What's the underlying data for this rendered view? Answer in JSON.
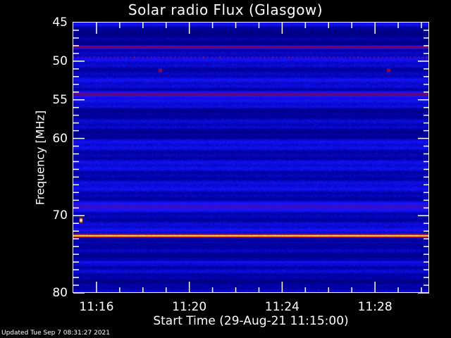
{
  "chart_data": {
    "type": "heatmap",
    "title": "Solar radio Flux (Glasgow)",
    "xlabel": "Start Time (29-Aug-21 11:15:00)",
    "ylabel": "Frequency [MHz]",
    "xlim": [
      "11:15:00",
      "11:30:20"
    ],
    "ylim": [
      80,
      45
    ],
    "x_ticks": [
      "11:16",
      "11:20",
      "11:24",
      "11:28"
    ],
    "y_ticks": [
      45,
      50,
      55,
      60,
      70,
      80
    ],
    "colormap": [
      "#000028",
      "#0000a0",
      "#1414ff",
      "#8c003c",
      "#c80000",
      "#f0dc00",
      "#ffffff"
    ],
    "features": [
      {
        "freq": 45.2,
        "width": 0.4,
        "level": 0.45,
        "kind": "band"
      },
      {
        "freq": 48.2,
        "width": 0.35,
        "level": 0.62,
        "kind": "band"
      },
      {
        "freq": 49.5,
        "width": 0.3,
        "level": 0.7,
        "kind": "periodic-spikes"
      },
      {
        "freq": 51.2,
        "width": 0.3,
        "level": 0.7,
        "kind": "spot",
        "times": [
          "11:18:45",
          "11:28:35"
        ]
      },
      {
        "freq": 54.3,
        "width": 0.6,
        "level": 0.58,
        "kind": "band"
      },
      {
        "freq": 68.8,
        "width": 0.8,
        "level": 0.5,
        "kind": "band"
      },
      {
        "freq": 70.6,
        "width": 0.4,
        "level": 1.0,
        "kind": "spot",
        "times": [
          "11:15:20"
        ]
      },
      {
        "freq": 72.6,
        "width": 0.35,
        "level": 0.95,
        "kind": "band"
      },
      {
        "freq": 76.0,
        "width": 0.3,
        "level": 0.45,
        "kind": "band"
      }
    ]
  },
  "footer": {
    "updated": "Updated Tue Sep  7 08:31:27 2021"
  }
}
